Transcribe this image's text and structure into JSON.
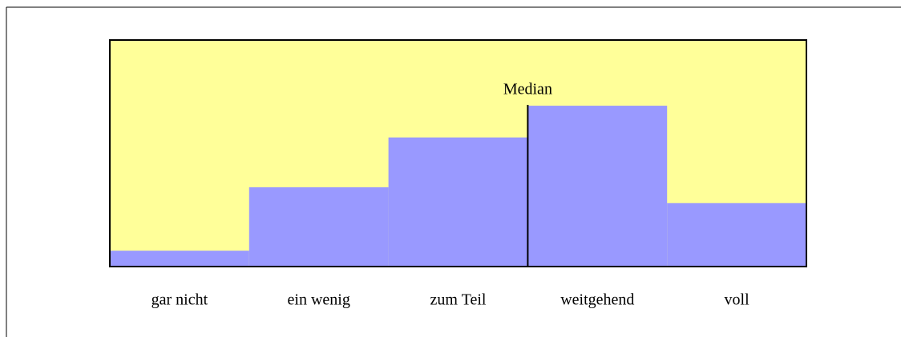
{
  "chart_data": {
    "type": "bar",
    "categories": [
      "gar nicht",
      "ein wenig",
      "zum Teil",
      "weitgehend",
      "voll"
    ],
    "values": [
      7,
      35,
      57,
      71,
      28
    ],
    "color": "#9999ff",
    "background": "#ffff99",
    "ylim": [
      0,
      100
    ],
    "median": {
      "label": "Median",
      "position": 3
    }
  }
}
